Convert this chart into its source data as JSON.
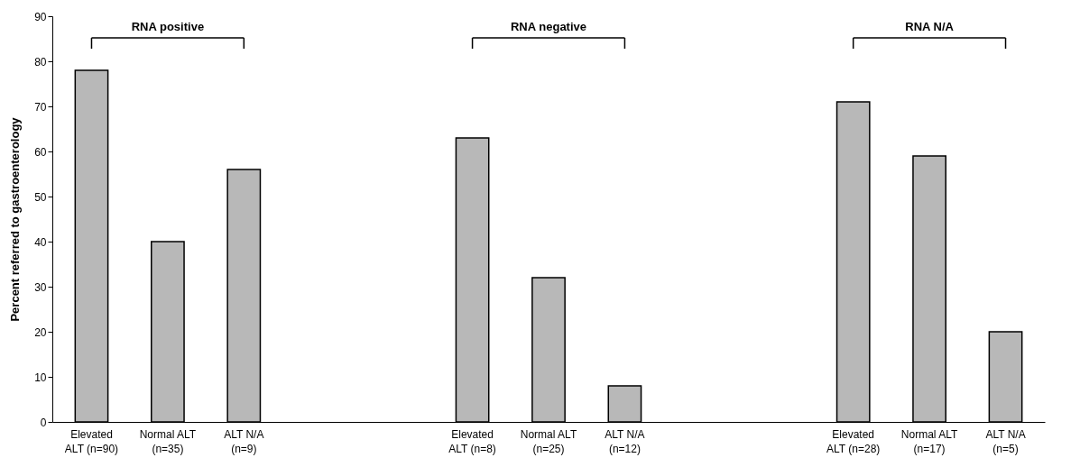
{
  "chart_data": {
    "type": "bar",
    "ylabel": "Percent referred to gastroenterology",
    "categories": [
      "Elevated ALT (n=90)",
      "Normal ALT (n=35)",
      "ALT N/A (n=9)",
      null,
      null,
      "Elevated ALT (n=8)",
      "Normal ALT (n=25)",
      "ALT N/A (n=12)",
      null,
      null,
      "Elevated ALT (n=28)",
      "Normal ALT (n=17)",
      "ALT N/A (n=5)"
    ],
    "values": [
      78,
      40,
      56,
      null,
      null,
      63,
      32,
      8,
      null,
      null,
      71,
      59,
      20
    ],
    "color": "#b8b8b8",
    "ylim": [
      0,
      90
    ],
    "yticks": [
      0,
      10,
      20,
      30,
      40,
      50,
      60,
      70,
      80,
      90
    ],
    "grid": false,
    "annotations": [
      "RNA positive",
      "RNA negative",
      "RNA N/A"
    ]
  }
}
